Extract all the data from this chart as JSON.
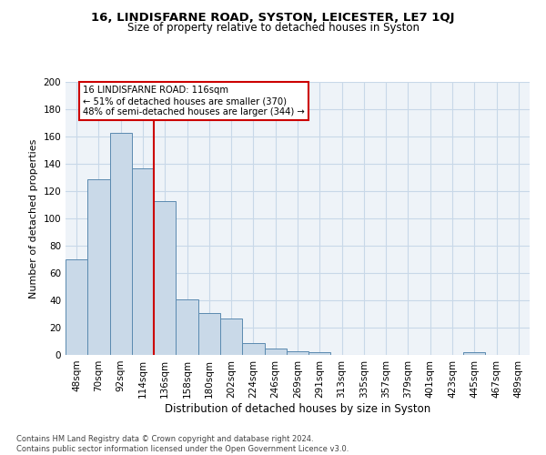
{
  "title1": "16, LINDISFARNE ROAD, SYSTON, LEICESTER, LE7 1QJ",
  "title2": "Size of property relative to detached houses in Syston",
  "xlabel": "Distribution of detached houses by size in Syston",
  "ylabel": "Number of detached properties",
  "footnote": "Contains HM Land Registry data © Crown copyright and database right 2024.\nContains public sector information licensed under the Open Government Licence v3.0.",
  "bar_labels": [
    "48sqm",
    "70sqm",
    "92sqm",
    "114sqm",
    "136sqm",
    "158sqm",
    "180sqm",
    "202sqm",
    "224sqm",
    "246sqm",
    "269sqm",
    "291sqm",
    "313sqm",
    "335sqm",
    "357sqm",
    "379sqm",
    "401sqm",
    "423sqm",
    "445sqm",
    "467sqm",
    "489sqm"
  ],
  "bar_values": [
    70,
    129,
    163,
    137,
    113,
    41,
    31,
    27,
    9,
    5,
    3,
    2,
    0,
    0,
    0,
    0,
    0,
    0,
    2,
    0,
    0
  ],
  "bar_color": "#c9d9e8",
  "bar_edge_color": "#5a8ab0",
  "vline_color": "#cc0000",
  "annotation_line1": "16 LINDISFARNE ROAD: 116sqm",
  "annotation_line2": "← 51% of detached houses are smaller (370)",
  "annotation_line3": "48% of semi-detached houses are larger (344) →",
  "box_color": "#cc0000",
  "grid_color": "#c8d8e8",
  "background_color": "#eef3f8",
  "ylim": [
    0,
    200
  ],
  "yticks": [
    0,
    20,
    40,
    60,
    80,
    100,
    120,
    140,
    160,
    180,
    200
  ],
  "vline_position": 3.5,
  "figwidth": 6.0,
  "figheight": 5.0,
  "dpi": 100
}
